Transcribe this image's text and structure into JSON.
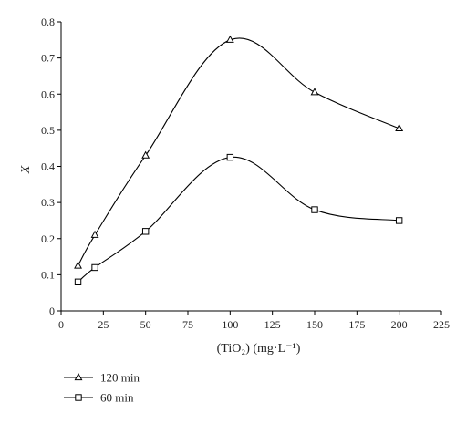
{
  "chart_data": {
    "type": "line",
    "xlabel": "(TiO₂) (mg·L⁻¹)",
    "ylabel": "X",
    "xlim": [
      0,
      225
    ],
    "ylim": [
      0,
      0.8
    ],
    "xticks": [
      0,
      25,
      50,
      75,
      100,
      125,
      150,
      175,
      200,
      225
    ],
    "yticks": [
      0,
      0.1,
      0.2,
      0.3,
      0.4,
      0.5,
      0.6,
      0.7,
      0.8
    ],
    "grid": false,
    "legend_position": "bottom-left",
    "series": [
      {
        "name": "120 min",
        "marker": "triangle",
        "color": "#000000",
        "x": [
          10,
          20,
          50,
          100,
          150,
          200
        ],
        "y": [
          0.125,
          0.21,
          0.43,
          0.75,
          0.605,
          0.505
        ]
      },
      {
        "name": "60 min",
        "marker": "square",
        "color": "#000000",
        "x": [
          10,
          20,
          50,
          100,
          150,
          200
        ],
        "y": [
          0.08,
          0.12,
          0.22,
          0.425,
          0.28,
          0.25
        ]
      }
    ]
  }
}
